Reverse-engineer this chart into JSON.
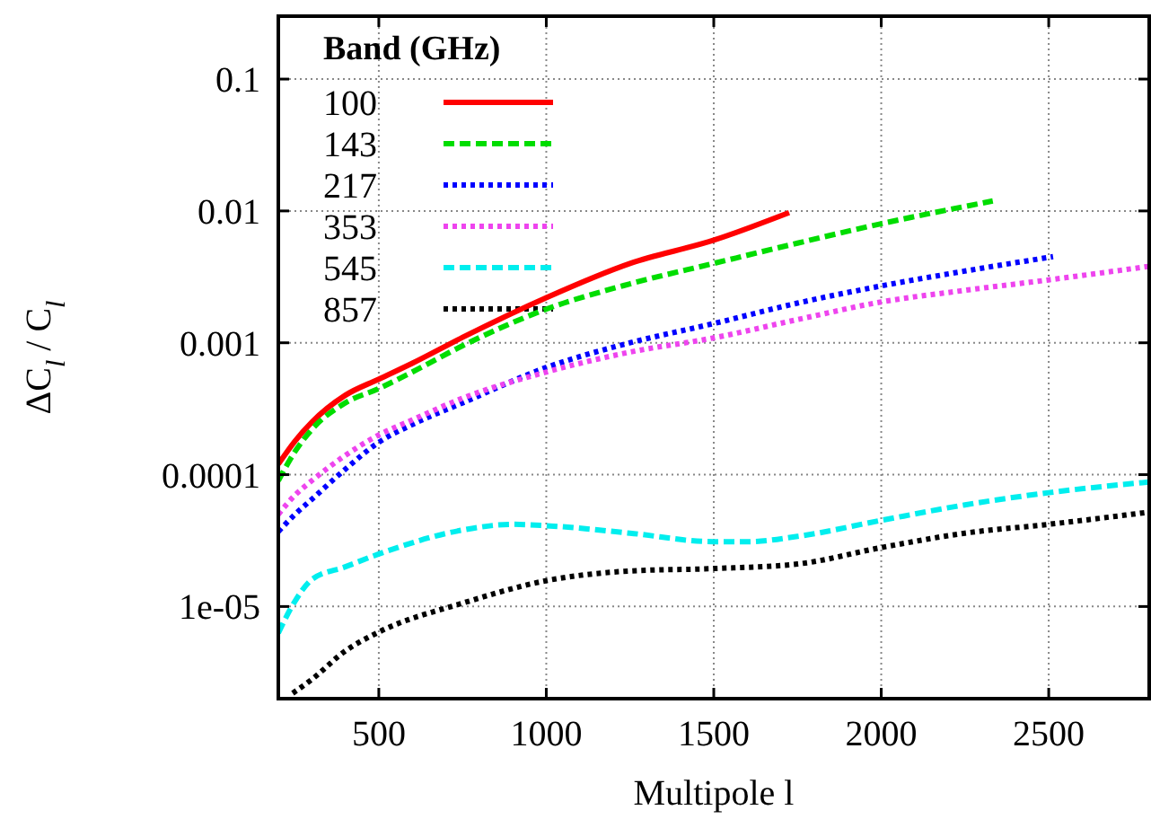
{
  "chart_data": {
    "type": "line",
    "xlabel": "Multipole l",
    "ylabel": "ΔC$_{l}$ / C$_{l}$",
    "legend_title": "Band (GHz)",
    "legend": "top left",
    "grid": true,
    "log": "y",
    "xlim": [
      200,
      2800
    ],
    "xticks": [
      500,
      1000,
      1500,
      2000,
      2500
    ],
    "ylim": [
      2e-06,
      0.3
    ],
    "yticks": [
      0.1,
      0.01,
      0.001,
      0.0001,
      {
        "value": 1e-05,
        "label": "1e-05"
      }
    ],
    "series": [
      {
        "name": "100",
        "color": "#ff0000",
        "line_style": "solid",
        "x": [
          200,
          250,
          300,
          400,
          500,
          600,
          750,
          1000,
          1250,
          1500,
          1725
        ],
        "values": [
          0.00012,
          0.00018,
          0.00025,
          0.0004,
          0.00053,
          0.0007,
          0.0011,
          0.0022,
          0.004,
          0.006,
          0.0097
        ]
      },
      {
        "name": "143",
        "color": "#00dd00",
        "line_style": "dashed",
        "x": [
          200,
          250,
          300,
          400,
          500,
          600,
          750,
          1000,
          1250,
          1500,
          1750,
          2000,
          2333
        ],
        "values": [
          9e-05,
          0.00015,
          0.00022,
          0.00035,
          0.00045,
          0.0006,
          0.00095,
          0.0018,
          0.0028,
          0.004,
          0.0057,
          0.008,
          0.0119
        ]
      },
      {
        "name": "217",
        "color": "#0000ff",
        "line_style": "dotted",
        "x": [
          200,
          250,
          300,
          400,
          500,
          600,
          750,
          1000,
          1250,
          1500,
          1750,
          2000,
          2250,
          2513
        ],
        "values": [
          3.7e-05,
          5e-05,
          6.5e-05,
          0.00011,
          0.000176,
          0.00024,
          0.00035,
          0.00065,
          0.001,
          0.0014,
          0.002,
          0.0027,
          0.0035,
          0.0045
        ]
      },
      {
        "name": "353",
        "color": "#ee44ee",
        "line_style": "dotted",
        "x": [
          200,
          250,
          300,
          400,
          500,
          600,
          750,
          1000,
          1250,
          1500,
          1750,
          2000,
          2250,
          2500,
          2800
        ],
        "values": [
          5e-05,
          7e-05,
          9e-05,
          0.00014,
          0.0002,
          0.00026,
          0.00038,
          0.0006,
          0.00085,
          0.00109,
          0.0015,
          0.00204,
          0.0025,
          0.003,
          0.0038
        ]
      },
      {
        "name": "545",
        "color": "#00eeee",
        "line_style": "dashed",
        "x": [
          200,
          250,
          300,
          400,
          500,
          750,
          900,
          1000,
          1250,
          1500,
          1600,
          1750,
          2000,
          2250,
          2500,
          2800
        ],
        "values": [
          6.3e-06,
          1.1e-05,
          1.6e-05,
          2e-05,
          2.5e-05,
          3.8e-05,
          4.2e-05,
          4.1e-05,
          3.6e-05,
          3.1e-05,
          3.1e-05,
          3.4e-05,
          4.5e-05,
          5.9e-05,
          7.3e-05,
          8.8e-05
        ]
      },
      {
        "name": "857",
        "color": "#000000",
        "line_style": "dotted",
        "x": [
          243,
          300,
          400,
          500,
          750,
          1000,
          1250,
          1500,
          1750,
          2000,
          2250,
          2500,
          2800
        ],
        "values": [
          2.2e-06,
          2.8e-06,
          4.6e-06,
          6.4e-06,
          1.06e-05,
          1.57e-05,
          1.86e-05,
          1.94e-05,
          2.1e-05,
          2.8e-05,
          3.6e-05,
          4.2e-05,
          5.2e-05
        ]
      }
    ]
  }
}
